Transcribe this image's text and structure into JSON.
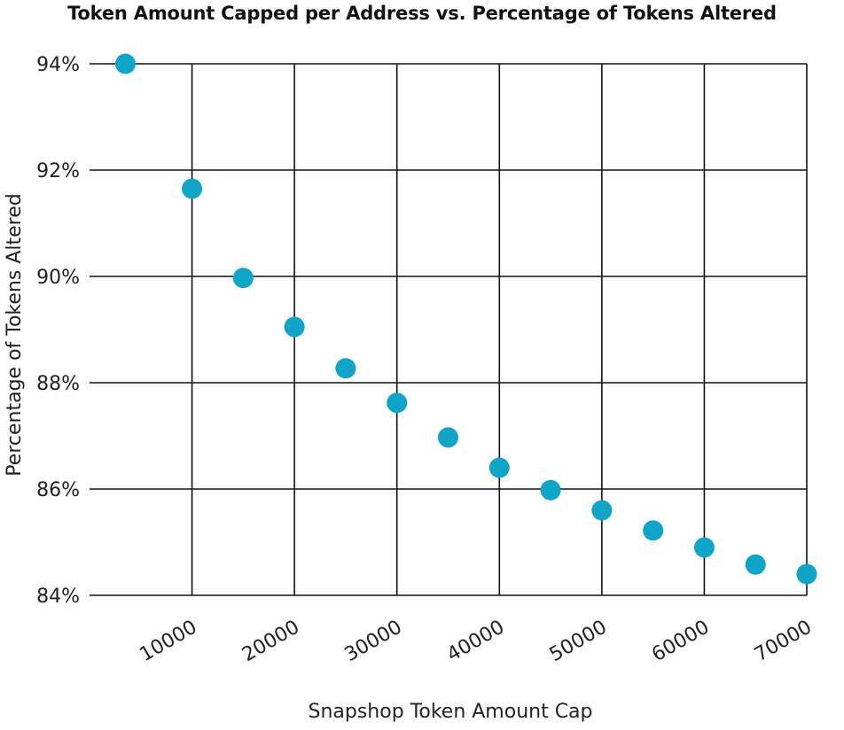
{
  "chart_data": {
    "type": "scatter",
    "title": "Token Amount Capped per Address vs. Percentage of Tokens Altered",
    "xlabel": "Snapshop Token Amount Cap",
    "ylabel": "Percentage of Tokens Altered",
    "xlim": [
      0,
      70000
    ],
    "ylim": [
      84,
      94
    ],
    "xticks": [
      10000,
      20000,
      30000,
      40000,
      50000,
      60000,
      70000
    ],
    "xtick_labels": [
      "10000",
      "20000",
      "30000",
      "40000",
      "50000",
      "60000",
      "70000"
    ],
    "yticks": [
      84,
      86,
      88,
      90,
      92,
      94
    ],
    "ytick_labels": [
      "84%",
      "86%",
      "88%",
      "90%",
      "92%",
      "94%"
    ],
    "grid": true,
    "point_color": "#0fa5c9",
    "points": [
      {
        "x": 3500,
        "y": 94.0
      },
      {
        "x": 10000,
        "y": 91.65
      },
      {
        "x": 15000,
        "y": 89.97
      },
      {
        "x": 20000,
        "y": 89.05
      },
      {
        "x": 25000,
        "y": 88.27
      },
      {
        "x": 30000,
        "y": 87.62
      },
      {
        "x": 35000,
        "y": 86.97
      },
      {
        "x": 40000,
        "y": 86.4
      },
      {
        "x": 45000,
        "y": 85.98
      },
      {
        "x": 50000,
        "y": 85.6
      },
      {
        "x": 55000,
        "y": 85.22
      },
      {
        "x": 60000,
        "y": 84.9
      },
      {
        "x": 65000,
        "y": 84.58
      },
      {
        "x": 70000,
        "y": 84.4
      }
    ]
  }
}
